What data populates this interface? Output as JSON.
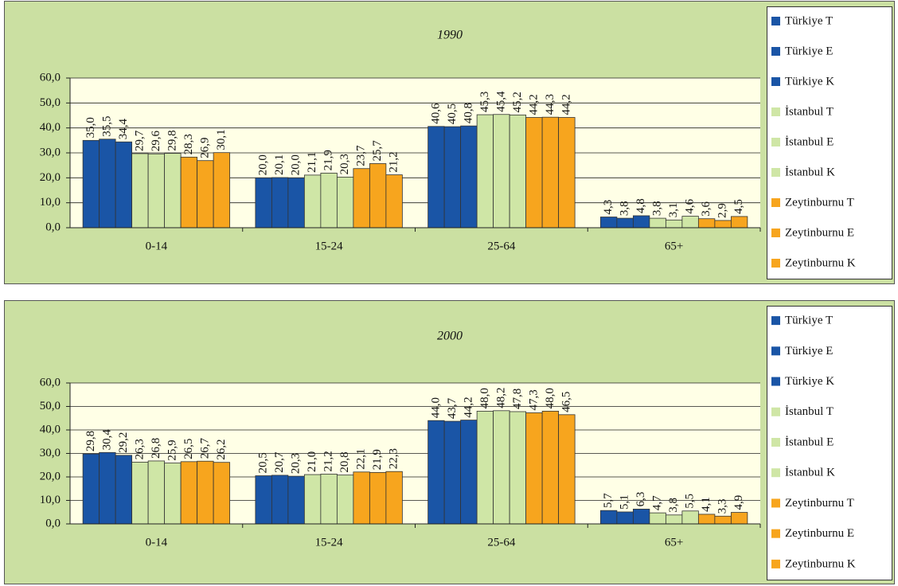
{
  "chart_data": [
    {
      "type": "bar",
      "title": "1990",
      "categories": [
        "0-14",
        "15-24",
        "25-64",
        "65+"
      ],
      "ylim": [
        0,
        60
      ],
      "yticks": [
        {
          "value": 0,
          "label": "0,0"
        },
        {
          "value": 10,
          "label": "10,0"
        },
        {
          "value": 20,
          "label": "20,0"
        },
        {
          "value": 30,
          "label": "30,0"
        },
        {
          "value": 40,
          "label": "40,0"
        },
        {
          "value": 50,
          "label": "50,0"
        },
        {
          "value": 60,
          "label": "60,0"
        }
      ],
      "grid": true,
      "legend": "right",
      "series": [
        {
          "name": "Türkiye T",
          "color": "#1a55a6",
          "values": [
            35.0,
            20.0,
            40.6,
            4.3
          ],
          "value_labels": [
            "35,0",
            "20,0",
            "40,6",
            "4,3"
          ]
        },
        {
          "name": "Türkiye E",
          "color": "#1a55a6",
          "values": [
            35.5,
            20.1,
            40.5,
            3.8
          ],
          "value_labels": [
            "35,5",
            "20,1",
            "40,5",
            "3,8"
          ]
        },
        {
          "name": "Türkiye K",
          "color": "#1a55a6",
          "values": [
            34.4,
            20.0,
            40.8,
            4.8
          ],
          "value_labels": [
            "34,4",
            "20,0",
            "40,8",
            "4,8"
          ]
        },
        {
          "name": "İstanbul T",
          "color": "#cfe6a6",
          "values": [
            29.7,
            21.1,
            45.3,
            3.8
          ],
          "value_labels": [
            "29,7",
            "21,1",
            "45,3",
            "3,8"
          ]
        },
        {
          "name": "İstanbul E",
          "color": "#cfe6a6",
          "values": [
            29.6,
            21.9,
            45.4,
            3.1
          ],
          "value_labels": [
            "29,6",
            "21,9",
            "45,4",
            "3,1"
          ]
        },
        {
          "name": "İstanbul K",
          "color": "#cfe6a6",
          "values": [
            29.8,
            20.3,
            45.2,
            4.6
          ],
          "value_labels": [
            "29,8",
            "20,3",
            "45,2",
            "4,6"
          ]
        },
        {
          "name": "Zeytinburnu T",
          "color": "#f7a51e",
          "values": [
            28.3,
            23.7,
            44.2,
            3.6
          ],
          "value_labels": [
            "28,3",
            "23,7",
            "44,2",
            "3,6"
          ]
        },
        {
          "name": "Zeytinburnu E",
          "color": "#f7a51e",
          "values": [
            26.9,
            25.7,
            44.3,
            2.9
          ],
          "value_labels": [
            "26,9",
            "25,7",
            "44,3",
            "2,9"
          ]
        },
        {
          "name": "Zeytinburnu K",
          "color": "#f7a51e",
          "values": [
            30.1,
            21.2,
            44.2,
            4.5
          ],
          "value_labels": [
            "30,1",
            "21,2",
            "44,2",
            "4,5"
          ]
        }
      ]
    },
    {
      "type": "bar",
      "title": "2000",
      "categories": [
        "0-14",
        "15-24",
        "25-64",
        "65+"
      ],
      "ylim": [
        0,
        60
      ],
      "yticks": [
        {
          "value": 0,
          "label": "0,0"
        },
        {
          "value": 10,
          "label": "10,0"
        },
        {
          "value": 20,
          "label": "20,0"
        },
        {
          "value": 30,
          "label": "30,0"
        },
        {
          "value": 40,
          "label": "40,0"
        },
        {
          "value": 50,
          "label": "50,0"
        },
        {
          "value": 60,
          "label": "60,0"
        }
      ],
      "grid": true,
      "legend": "right",
      "series": [
        {
          "name": "Türkiye T",
          "color": "#1a55a6",
          "values": [
            29.8,
            20.5,
            44.0,
            5.7
          ],
          "value_labels": [
            "29,8",
            "20,5",
            "44,0",
            "5,7"
          ]
        },
        {
          "name": "Türkiye E",
          "color": "#1a55a6",
          "values": [
            30.4,
            20.7,
            43.7,
            5.1
          ],
          "value_labels": [
            "30,4",
            "20,7",
            "43,7",
            "5,1"
          ]
        },
        {
          "name": "Türkiye K",
          "color": "#1a55a6",
          "values": [
            29.2,
            20.3,
            44.2,
            6.3
          ],
          "value_labels": [
            "29,2",
            "20,3",
            "44,2",
            "6,3"
          ]
        },
        {
          "name": "İstanbul T",
          "color": "#cfe6a6",
          "values": [
            26.3,
            21.0,
            48.0,
            4.7
          ],
          "value_labels": [
            "26,3",
            "21,0",
            "48,0",
            "4,7"
          ]
        },
        {
          "name": "İstanbul E",
          "color": "#cfe6a6",
          "values": [
            26.8,
            21.2,
            48.2,
            3.8
          ],
          "value_labels": [
            "26,8",
            "21,2",
            "48,2",
            "3,8"
          ]
        },
        {
          "name": "İstanbul K",
          "color": "#cfe6a6",
          "values": [
            25.9,
            20.8,
            47.8,
            5.5
          ],
          "value_labels": [
            "25,9",
            "20,8",
            "47,8",
            "5,5"
          ]
        },
        {
          "name": "Zeytinburnu T",
          "color": "#f7a51e",
          "values": [
            26.5,
            22.1,
            47.3,
            4.1
          ],
          "value_labels": [
            "26,5",
            "22,1",
            "47,3",
            "4,1"
          ]
        },
        {
          "name": "Zeytinburnu E",
          "color": "#f7a51e",
          "values": [
            26.7,
            21.9,
            48.0,
            3.3
          ],
          "value_labels": [
            "26,7",
            "21,9",
            "48,0",
            "3,3"
          ]
        },
        {
          "name": "Zeytinburnu K",
          "color": "#f7a51e",
          "values": [
            26.2,
            22.3,
            46.5,
            4.9
          ],
          "value_labels": [
            "26,2",
            "22,3",
            "46,5",
            "4,9"
          ]
        }
      ]
    }
  ]
}
